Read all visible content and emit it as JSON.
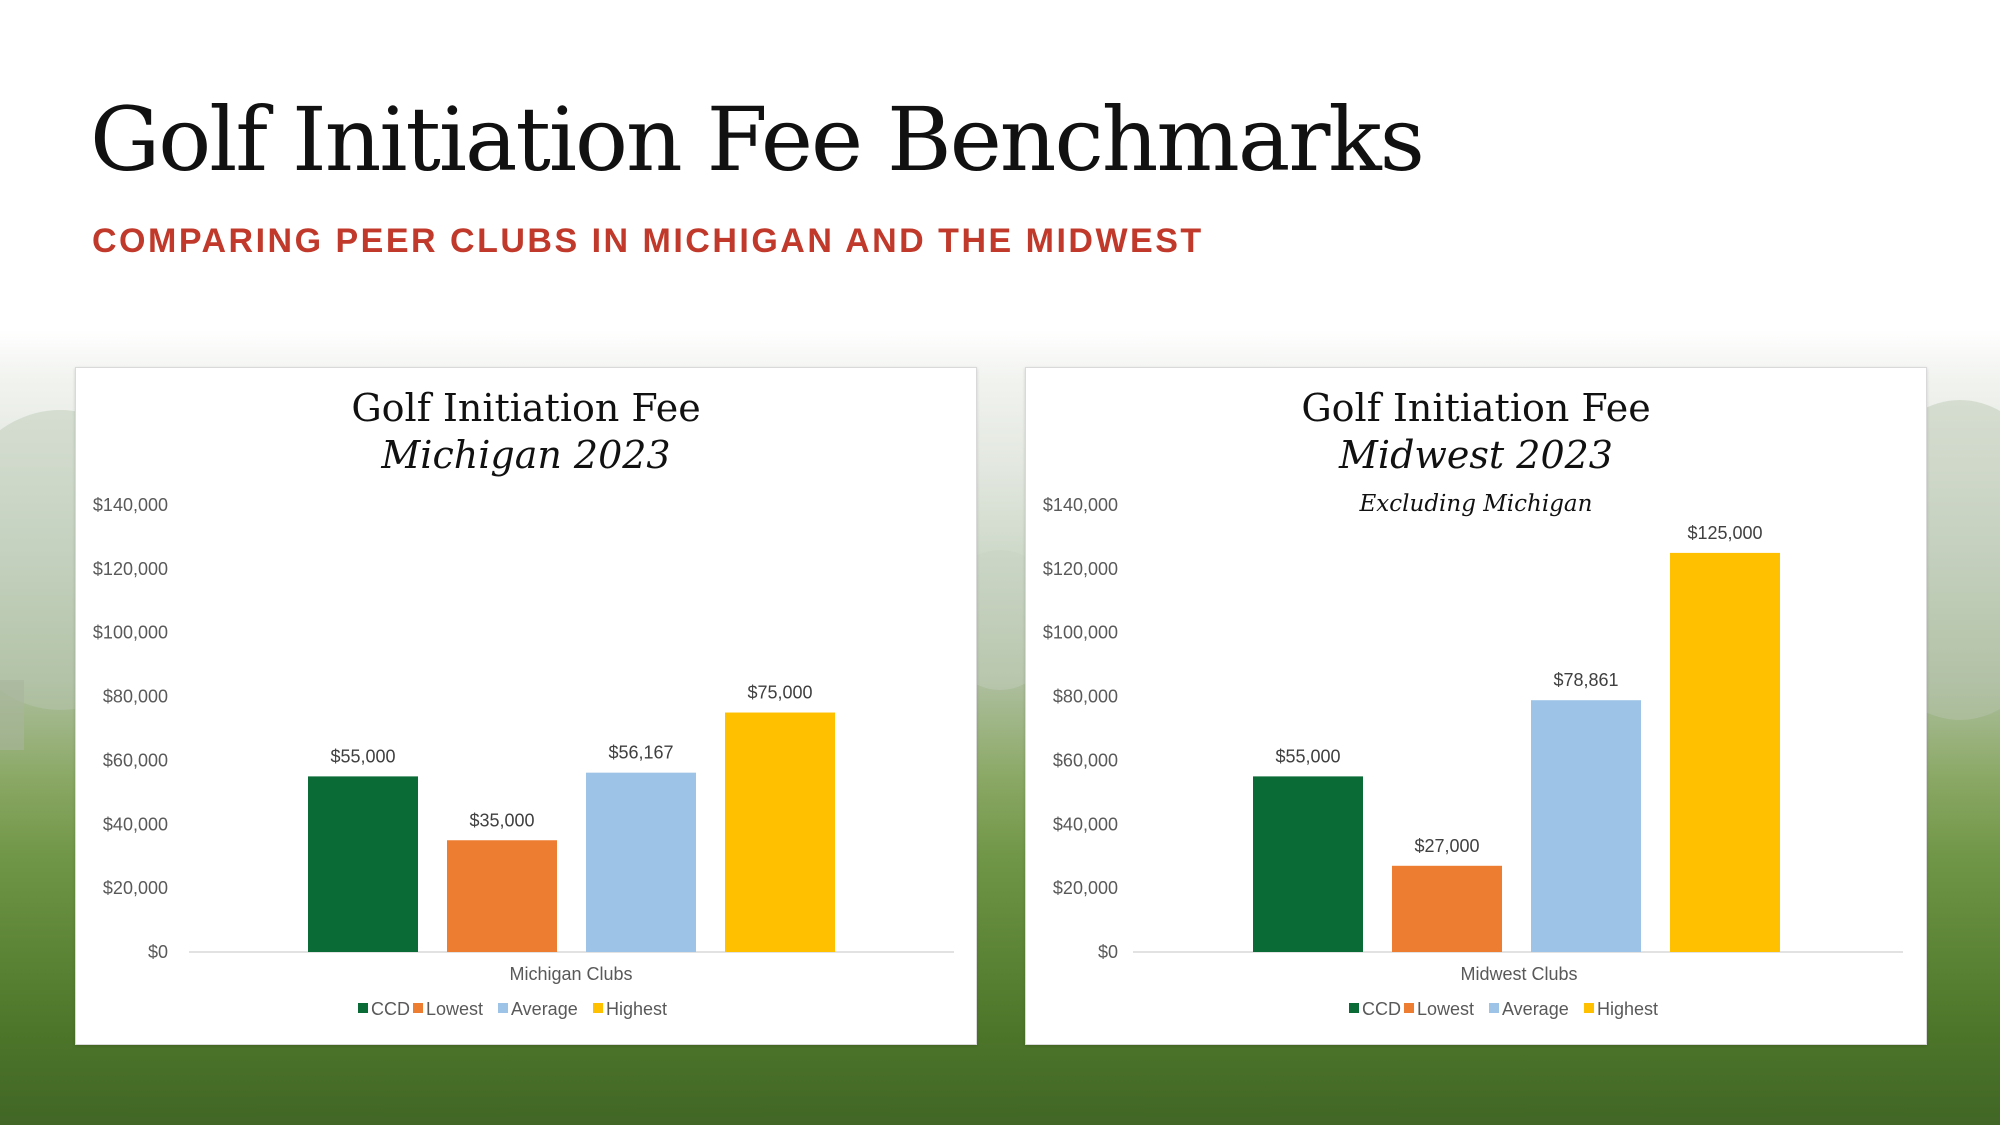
{
  "page": {
    "title": "Golf Initiation Fee Benchmarks",
    "subtitle": "COMPARING PEER CLUBS IN MICHIGAN AND THE MIDWEST"
  },
  "series_colors": {
    "CCD": "#0a6b37",
    "Lowest": "#ed7d31",
    "Average": "#9dc3e6",
    "Highest": "#ffc000"
  },
  "axis_color": "#d9d9d9",
  "chart_data": [
    {
      "type": "bar",
      "title": "Golf Initiation Fee",
      "subtitle": "Michigan 2023",
      "note": "",
      "categories": [
        "Michigan Clubs"
      ],
      "xlabel": "Michigan Clubs",
      "ylabel": "",
      "ylim": [
        0,
        140000
      ],
      "yticks": [
        "$140,000",
        "$120,000",
        "$100,000",
        "$80,000",
        "$60,000",
        "$40,000",
        "$20,000",
        "$0"
      ],
      "grid": false,
      "legend_position": "bottom",
      "series": [
        {
          "name": "CCD",
          "values": [
            55000
          ],
          "label": "$55,000"
        },
        {
          "name": "Lowest",
          "values": [
            35000
          ],
          "label": "$35,000"
        },
        {
          "name": "Average",
          "values": [
            56167
          ],
          "label": "$56,167"
        },
        {
          "name": "Highest",
          "values": [
            75000
          ],
          "label": "$75,000"
        }
      ]
    },
    {
      "type": "bar",
      "title": "Golf Initiation Fee",
      "subtitle": "Midwest 2023",
      "note": "Excluding Michigan",
      "categories": [
        "Midwest Clubs"
      ],
      "xlabel": "Midwest Clubs",
      "ylabel": "",
      "ylim": [
        0,
        140000
      ],
      "yticks": [
        "$140,000",
        "$120,000",
        "$100,000",
        "$80,000",
        "$60,000",
        "$40,000",
        "$20,000",
        "$0"
      ],
      "grid": false,
      "legend_position": "bottom",
      "series": [
        {
          "name": "CCD",
          "values": [
            55000
          ],
          "label": "$55,000"
        },
        {
          "name": "Lowest",
          "values": [
            27000
          ],
          "label": "$27,000"
        },
        {
          "name": "Average",
          "values": [
            78861
          ],
          "label": "$78,861"
        },
        {
          "name": "Highest",
          "values": [
            125000
          ],
          "label": "$125,000"
        }
      ]
    }
  ]
}
